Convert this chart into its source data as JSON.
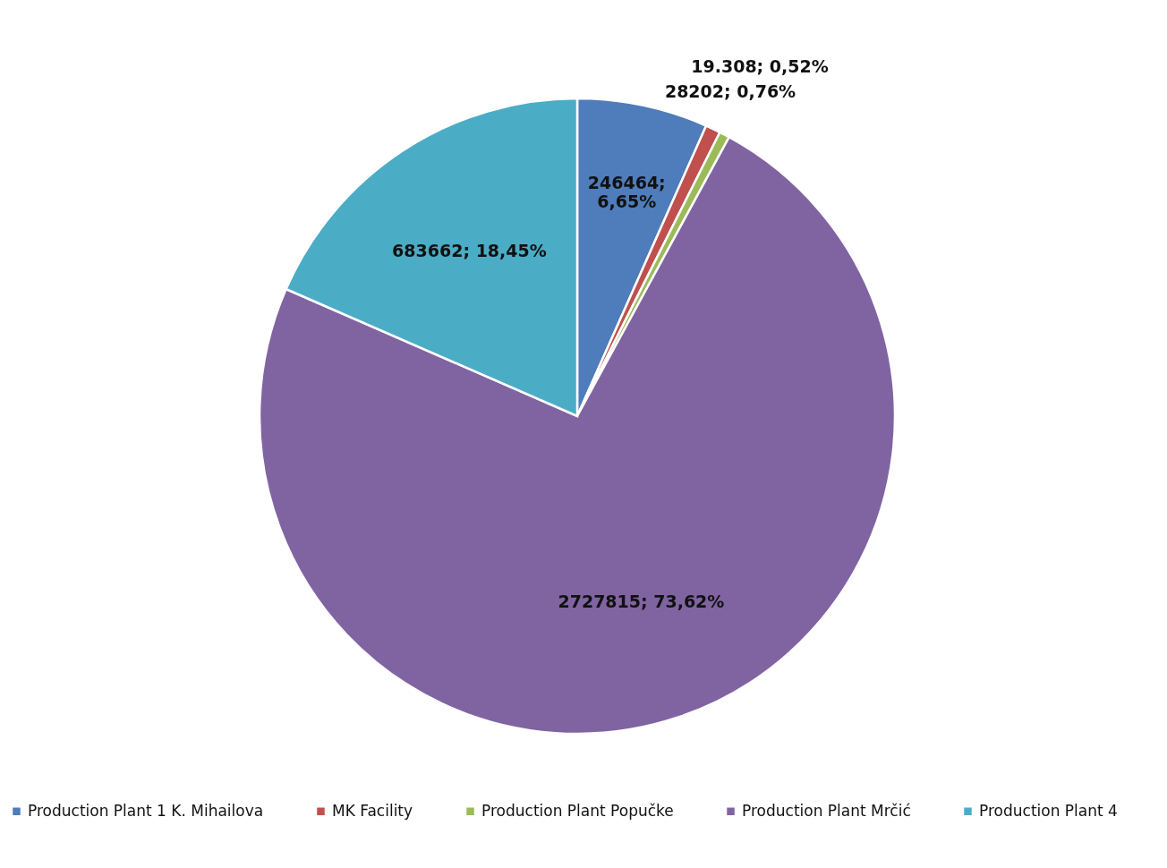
{
  "chart_data": {
    "type": "pie",
    "categories": [
      "Production Plant 1 K. Mihailova",
      "MK Facility",
      "Production Plant Popučke",
      "Production Plant Mrčić",
      "Production Plant 4"
    ],
    "values": [
      246464,
      28202,
      19308,
      2727815,
      683662
    ],
    "value_labels": [
      "246464; 6,65%",
      "28202; 0,76%",
      "19.308; 0,52%",
      "2727815; 73,62%",
      "683662; 18,45%"
    ],
    "colors": [
      "#4f7cba",
      "#c0504d",
      "#9bbb59",
      "#8064a2",
      "#4bacc6"
    ],
    "legend": "bottom"
  }
}
